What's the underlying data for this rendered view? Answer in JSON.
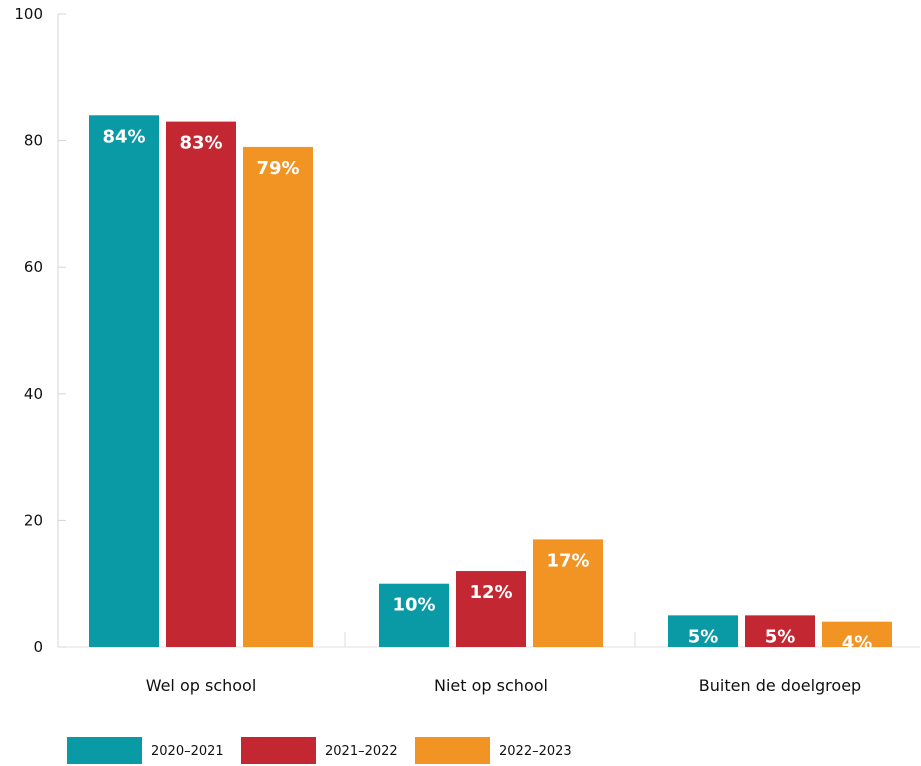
{
  "chart_data": {
    "type": "bar",
    "title": "",
    "xlabel": "",
    "ylabel": "",
    "ylim": [
      0,
      100
    ],
    "yticks": [
      0,
      20,
      40,
      60,
      80,
      100
    ],
    "grid": false,
    "legend_position": "bottom-left",
    "categories": [
      "Wel op school",
      "Niet op school",
      "Buiten de doelgroep"
    ],
    "series": [
      {
        "name": "2020–2021",
        "color": "#0a9aa6",
        "values": [
          84,
          10,
          5
        ],
        "labels": [
          "84%",
          "10%",
          "5%"
        ]
      },
      {
        "name": "2021–2022",
        "color": "#c32832",
        "values": [
          83,
          12,
          5
        ],
        "labels": [
          "83%",
          "12%",
          "5%"
        ]
      },
      {
        "name": "2022–2023",
        "color": "#f29424",
        "values": [
          79,
          17,
          4
        ],
        "labels": [
          "79%",
          "17%",
          "4%"
        ]
      }
    ]
  }
}
